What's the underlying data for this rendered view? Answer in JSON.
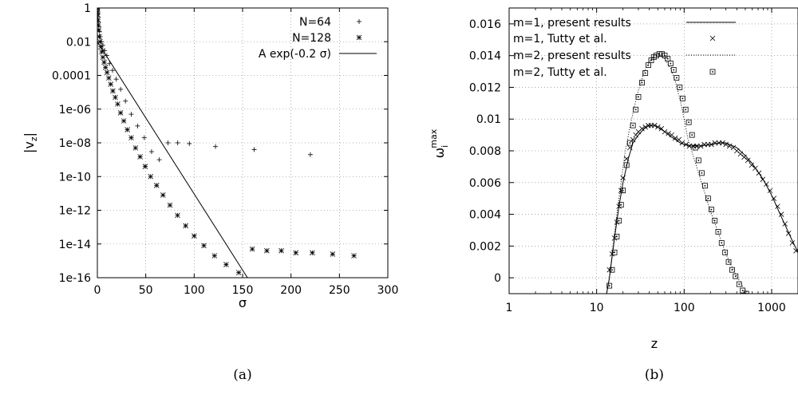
{
  "chart_data": [
    {
      "type": "scatter",
      "caption": "(a)",
      "xlabel": "σ",
      "ylabel": "|v_z|",
      "ylabel_main": "|v",
      "ylabel_sub": "z",
      "ylabel_end": "|",
      "yscale": "log",
      "xlim": [
        0,
        300
      ],
      "ylim": [
        1e-16,
        1
      ],
      "xticks": [
        0,
        50,
        100,
        150,
        200,
        250,
        300
      ],
      "yticks": [
        1,
        0.01,
        0.0001,
        1e-06,
        1e-08,
        1e-10,
        1e-12,
        1e-14,
        1e-16
      ],
      "ytick_labels": [
        "1",
        "0.01",
        "0.0001",
        "1e-06",
        "1e-08",
        "1e-10",
        "1e-12",
        "1e-14",
        "1e-16"
      ],
      "grid": true,
      "legend_position": "top-right",
      "series": [
        {
          "name": "N=64",
          "marker": "plus",
          "x": [
            0.1,
            0.3,
            0.6,
            1,
            1.5,
            2.2,
            3,
            4.2,
            5.7,
            7.5,
            9.8,
            12.5,
            15.7,
            19.5,
            24,
            29,
            35,
            41.5,
            48.5,
            56,
            64,
            73,
            83,
            95,
            122,
            162,
            220
          ],
          "y": [
            0.8,
            0.5,
            0.3,
            0.15,
            0.08,
            0.04,
            0.02,
            0.01,
            0.006,
            0.003,
            0.0015,
            0.0005,
            0.0002,
            6e-05,
            1.5e-05,
            3e-06,
            5e-07,
            1e-07,
            2e-08,
            3e-09,
            1e-09,
            1e-08,
            1e-08,
            9e-09,
            6e-09,
            4e-09,
            2e-09
          ]
        },
        {
          "name": "N=128",
          "marker": "star",
          "x": [
            0.05,
            0.2,
            0.4,
            0.7,
            1,
            1.5,
            2,
            2.8,
            3.6,
            4.6,
            5.7,
            7,
            8.4,
            10,
            11.8,
            13.8,
            16,
            18.5,
            21,
            24,
            27.3,
            31,
            35,
            39.4,
            44.2,
            49.4,
            55,
            61.2,
            67.8,
            75,
            82.8,
            91.2,
            100,
            110,
            121,
            133,
            146,
            160,
            175,
            190,
            205,
            222,
            243,
            265
          ],
          "y": [
            0.9,
            0.6,
            0.4,
            0.2,
            0.1,
            0.05,
            0.02,
            0.01,
            0.005,
            0.0025,
            0.0012,
            0.0006,
            0.0003,
            0.00015,
            7e-05,
            3e-05,
            1.2e-05,
            5e-06,
            2e-06,
            6e-07,
            2e-07,
            6e-08,
            2e-08,
            5e-09,
            1.5e-09,
            4e-10,
            1e-10,
            3e-11,
            8e-12,
            2e-12,
            5e-13,
            1.2e-13,
            3e-14,
            8e-15,
            2e-15,
            6e-16,
            2e-16,
            5e-15,
            4e-15,
            4e-15,
            3e-15,
            3e-15,
            2.5e-15,
            2e-15
          ]
        },
        {
          "name": "A exp(-0.2 σ)",
          "marker": "line",
          "x": [
            0,
            155
          ],
          "y": [
            0.01,
            1e-16
          ]
        }
      ]
    },
    {
      "type": "line",
      "caption": "(b)",
      "xlabel": "z",
      "ylabel": "ω_i^max",
      "ylabel_main": "ω",
      "ylabel_sub": "i",
      "ylabel_sup": "max",
      "xscale": "log",
      "xlim": [
        1,
        2000
      ],
      "ylim": [
        -0.001,
        0.017
      ],
      "xticks": [
        1,
        10,
        100,
        1000
      ],
      "xtick_labels": [
        "1",
        "10",
        "100",
        "1000"
      ],
      "yticks": [
        0,
        0.002,
        0.004,
        0.006,
        0.008,
        0.01,
        0.012,
        0.014,
        0.016
      ],
      "ytick_labels": [
        "0",
        "0.002",
        "0.004",
        "0.006",
        "0.008",
        "0.01",
        "0.012",
        "0.014",
        "0.016"
      ],
      "grid": true,
      "legend_position": "top-left",
      "series": [
        {
          "name": "m=1, present results",
          "style": "solid",
          "x": [
            13,
            14,
            16,
            18,
            20,
            23,
            26,
            30,
            35,
            40,
            45,
            50,
            60,
            70,
            80,
            90,
            100,
            120,
            150,
            200,
            250,
            300,
            400,
            500,
            600,
            800,
            1000,
            1300,
            1700,
            2000
          ],
          "y": [
            -0.001,
            0.0,
            0.0025,
            0.0045,
            0.006,
            0.0075,
            0.0085,
            0.009,
            0.0094,
            0.0096,
            0.0096,
            0.0095,
            0.0092,
            0.0089,
            0.0087,
            0.0085,
            0.0084,
            0.0083,
            0.0083,
            0.0084,
            0.0085,
            0.0085,
            0.0082,
            0.0077,
            0.0072,
            0.0062,
            0.0052,
            0.0038,
            0.0024,
            0.0016
          ]
        },
        {
          "name": "m=1, Tutty et al.",
          "marker": "x",
          "x": [
            14,
            15,
            16,
            17,
            18,
            19,
            20,
            22,
            24,
            26,
            28,
            30,
            33,
            36,
            39,
            42,
            46,
            50,
            55,
            60,
            66,
            72,
            79,
            87,
            95,
            105,
            115,
            127,
            140,
            155,
            170,
            187,
            205,
            225,
            250,
            275,
            300,
            330,
            365,
            400,
            440,
            485,
            535,
            590,
            650,
            715,
            790,
            870,
            960,
            1060,
            1170,
            1290,
            1420,
            1560,
            1720,
            1900
          ],
          "y": [
            0.0005,
            0.0015,
            0.0025,
            0.0035,
            0.0045,
            0.0055,
            0.0063,
            0.0075,
            0.0082,
            0.0087,
            0.009,
            0.0092,
            0.0094,
            0.0095,
            0.0096,
            0.0096,
            0.0096,
            0.0095,
            0.0094,
            0.0092,
            0.0091,
            0.009,
            0.0088,
            0.0087,
            0.0085,
            0.0084,
            0.0083,
            0.0083,
            0.0083,
            0.0083,
            0.0084,
            0.0084,
            0.0084,
            0.0085,
            0.0085,
            0.0085,
            0.0084,
            0.0083,
            0.0082,
            0.008,
            0.0078,
            0.0076,
            0.0074,
            0.0071,
            0.0069,
            0.0066,
            0.0062,
            0.0059,
            0.0055,
            0.005,
            0.0045,
            0.004,
            0.0034,
            0.0028,
            0.0022,
            0.0017
          ]
        },
        {
          "name": "m=2, present results",
          "style": "dotted",
          "x": [
            13,
            14,
            15,
            17,
            19,
            21,
            24,
            27,
            30,
            35,
            40,
            45,
            50,
            55,
            60,
            70,
            80,
            90,
            100,
            110,
            125,
            150,
            175,
            200,
            250,
            300,
            350,
            400,
            450,
            500,
            550
          ],
          "y": [
            -0.001,
            0.0,
            0.0015,
            0.004,
            0.006,
            0.0078,
            0.0095,
            0.0108,
            0.0118,
            0.013,
            0.0136,
            0.014,
            0.0141,
            0.014,
            0.0138,
            0.0132,
            0.0123,
            0.0112,
            0.01,
            0.0088,
            0.0078,
            0.0064,
            0.0052,
            0.0042,
            0.0027,
            0.0015,
            0.0007,
            0.0001,
            -0.0004,
            -0.0008,
            -0.001
          ]
        },
        {
          "name": "m=2, Tutty et al.",
          "marker": "square-dot",
          "x": [
            14,
            15,
            16,
            17,
            18,
            19,
            20,
            22,
            24,
            26,
            28,
            30,
            33,
            36,
            39,
            42,
            45,
            48,
            52,
            56,
            60,
            65,
            70,
            76,
            82,
            89,
            96,
            104,
            113,
            123,
            134,
            146,
            159,
            173,
            188,
            205,
            224,
            245,
            268,
            294,
            322,
            353,
            387,
            425,
            467,
            513
          ],
          "y": [
            -0.0005,
            0.0005,
            0.0016,
            0.0026,
            0.0036,
            0.0046,
            0.0055,
            0.0071,
            0.0085,
            0.0096,
            0.0106,
            0.0114,
            0.0123,
            0.0129,
            0.0134,
            0.0137,
            0.0139,
            0.014,
            0.0141,
            0.0141,
            0.014,
            0.0138,
            0.0135,
            0.0131,
            0.0126,
            0.012,
            0.0113,
            0.0106,
            0.0098,
            0.009,
            0.0082,
            0.0074,
            0.0066,
            0.0058,
            0.005,
            0.0043,
            0.0036,
            0.0029,
            0.0022,
            0.0016,
            0.001,
            0.0005,
            0.0001,
            -0.0004,
            -0.0008,
            -0.001
          ]
        }
      ]
    }
  ]
}
